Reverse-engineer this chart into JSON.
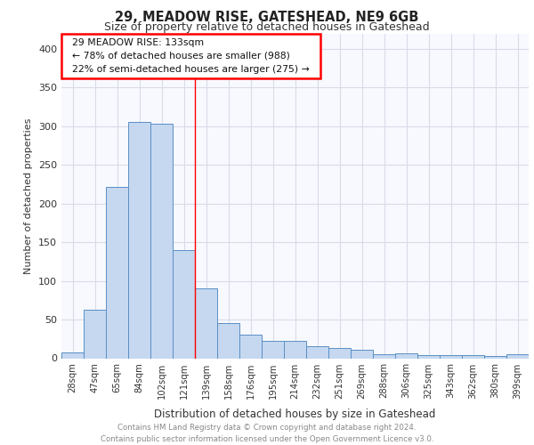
{
  "title1": "29, MEADOW RISE, GATESHEAD, NE9 6GB",
  "title2": "Size of property relative to detached houses in Gateshead",
  "xlabel": "Distribution of detached houses by size in Gateshead",
  "ylabel": "Number of detached properties",
  "categories": [
    "28sqm",
    "47sqm",
    "65sqm",
    "84sqm",
    "102sqm",
    "121sqm",
    "139sqm",
    "158sqm",
    "176sqm",
    "195sqm",
    "214sqm",
    "232sqm",
    "251sqm",
    "269sqm",
    "288sqm",
    "306sqm",
    "325sqm",
    "343sqm",
    "362sqm",
    "380sqm",
    "399sqm"
  ],
  "values": [
    8,
    63,
    221,
    305,
    303,
    140,
    90,
    46,
    31,
    23,
    23,
    15,
    13,
    11,
    5,
    6,
    4,
    4,
    4,
    3,
    5
  ],
  "bar_color": "#c5d8f0",
  "bar_edge_color": "#5a8fc4",
  "red_line_x": 6.0,
  "property_size": 133,
  "pct_smaller": 78,
  "n_smaller": 988,
  "pct_larger_semi": 22,
  "n_larger_semi": 275,
  "ylim": [
    0,
    420
  ],
  "yticks": [
    0,
    50,
    100,
    150,
    200,
    250,
    300,
    350,
    400
  ],
  "footer_line1": "Contains HM Land Registry data © Crown copyright and database right 2024.",
  "footer_line2": "Contains public sector information licensed under the Open Government Licence v3.0.",
  "bg_color": "#f8f9ff",
  "grid_color": "#d8dce8",
  "ann_line1": "29 MEADOW RISE: 133sqm",
  "ann_line2": "← 78% of detached houses are smaller (988)",
  "ann_line3": "22% of semi-detached houses are larger (275) →"
}
